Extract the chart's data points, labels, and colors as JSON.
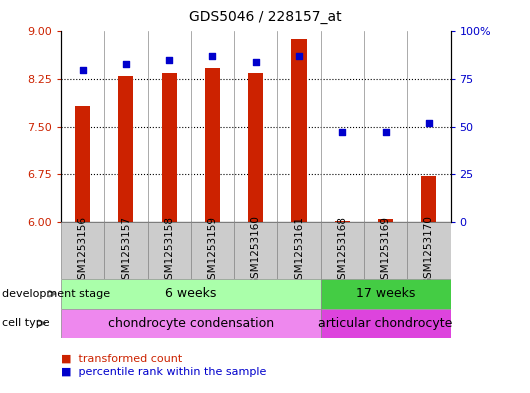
{
  "title": "GDS5046 / 228157_at",
  "samples": [
    "GSM1253156",
    "GSM1253157",
    "GSM1253158",
    "GSM1253159",
    "GSM1253160",
    "GSM1253161",
    "GSM1253168",
    "GSM1253169",
    "GSM1253170"
  ],
  "transformed_count": [
    7.82,
    8.3,
    8.34,
    8.42,
    8.35,
    8.88,
    6.02,
    6.05,
    6.72
  ],
  "percentile_rank": [
    80,
    83,
    85,
    87,
    84,
    87,
    47,
    47,
    52
  ],
  "ylim_left": [
    6.0,
    9.0
  ],
  "ylim_right": [
    0,
    100
  ],
  "yticks_left": [
    6.0,
    6.75,
    7.5,
    8.25,
    9.0
  ],
  "yticks_right": [
    0,
    25,
    50,
    75,
    100
  ],
  "bar_color": "#cc2200",
  "dot_color": "#0000cc",
  "bar_bottom": 6.0,
  "bar_width": 0.35,
  "groups": [
    {
      "label": "6 weeks",
      "start": 0,
      "end": 6,
      "color": "#aaffaa"
    },
    {
      "label": "17 weeks",
      "start": 6,
      "end": 9,
      "color": "#44cc44"
    }
  ],
  "cell_types": [
    {
      "label": "chondrocyte condensation",
      "start": 0,
      "end": 6,
      "color": "#ee88ee"
    },
    {
      "label": "articular chondrocyte",
      "start": 6,
      "end": 9,
      "color": "#dd44dd"
    }
  ],
  "dev_stage_label": "development stage",
  "cell_type_label": "cell type",
  "legend_items": [
    {
      "label": "transformed count",
      "color": "#cc2200"
    },
    {
      "label": "percentile rank within the sample",
      "color": "#0000cc"
    }
  ],
  "tick_label_color_left": "#cc2200",
  "tick_label_color_right": "#0000cc",
  "sample_box_color": "#cccccc",
  "title_fontsize": 10,
  "axis_fontsize": 8,
  "sample_fontsize": 7.5,
  "annotation_fontsize": 9,
  "legend_fontsize": 8
}
